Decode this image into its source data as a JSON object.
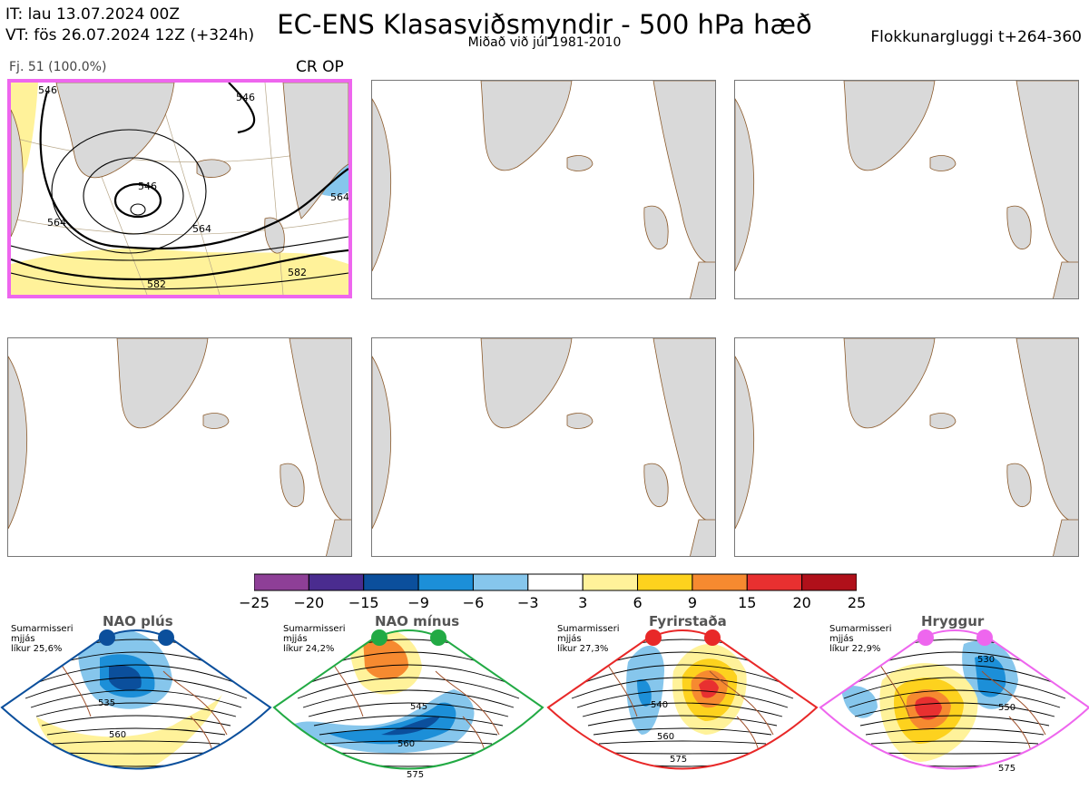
{
  "header": {
    "it_line": "IT: lau 13.07.2024 00Z",
    "vt_line": "VT: fös 26.07.2024 12Z  (+324h)",
    "title": "EC-ENS Klasasviðsmyndir - 500 hPa hæð",
    "subtitle": "Miðað við júl 1981-2010",
    "window": "Flokkunargluggi t+264-360"
  },
  "panel1": {
    "member_label": "Fj. 51 (100.0%)",
    "tags": "CR OP",
    "contour_labels": [
      "546",
      "546",
      "564",
      "564",
      "582",
      "582",
      "564",
      "546"
    ]
  },
  "colors": {
    "frame_highlight": "#ee66ee",
    "land": "#d9d9d9",
    "coast": "#8b5a2b",
    "contour": "#000000"
  },
  "colorbar": {
    "ticks": [
      "−25",
      "−20",
      "−15",
      "−9",
      "−6",
      "−3",
      "3",
      "6",
      "9",
      "15",
      "20",
      "25"
    ],
    "colors": [
      "#8e3f97",
      "#4a2c8f",
      "#0b4f9c",
      "#1c8fd8",
      "#86c6ec",
      "#ffffff",
      "#fff29a",
      "#fdd21e",
      "#f68a30",
      "#e83030",
      "#b0101a"
    ]
  },
  "regimes": [
    {
      "name": "NAO plús",
      "season": "Sumarmisseri",
      "scale": "mjjás",
      "prob": "líkur 25,6%",
      "color": "#0b4f9c",
      "labels": [
        "535",
        "560"
      ]
    },
    {
      "name": "NAO mínus",
      "season": "Sumarmisseri",
      "scale": "mjjás",
      "prob": "líkur 24,2%",
      "color": "#22aa44",
      "labels": [
        "545",
        "560",
        "575"
      ]
    },
    {
      "name": "Fyrirstaða",
      "season": "Sumarmisseri",
      "scale": "mjjás",
      "prob": "líkur 27,3%",
      "color": "#e82828",
      "labels": [
        "540",
        "560",
        "575"
      ]
    },
    {
      "name": "Hryggur",
      "season": "Sumarmisseri",
      "scale": "mjjás",
      "prob": "líkur 22,9%",
      "color": "#ee66ee",
      "labels": [
        "530",
        "550",
        "575"
      ]
    }
  ],
  "chart_data": {
    "type": "heatmap",
    "title": "EC-ENS Klasasviðsmyndir - 500 hPa hæð",
    "colorbar_levels": [
      -25,
      -20,
      -15,
      -9,
      -6,
      -3,
      3,
      6,
      9,
      15,
      20,
      25
    ],
    "panels": 6,
    "active_panel": "Fj. 51 (100.0%)"
  }
}
